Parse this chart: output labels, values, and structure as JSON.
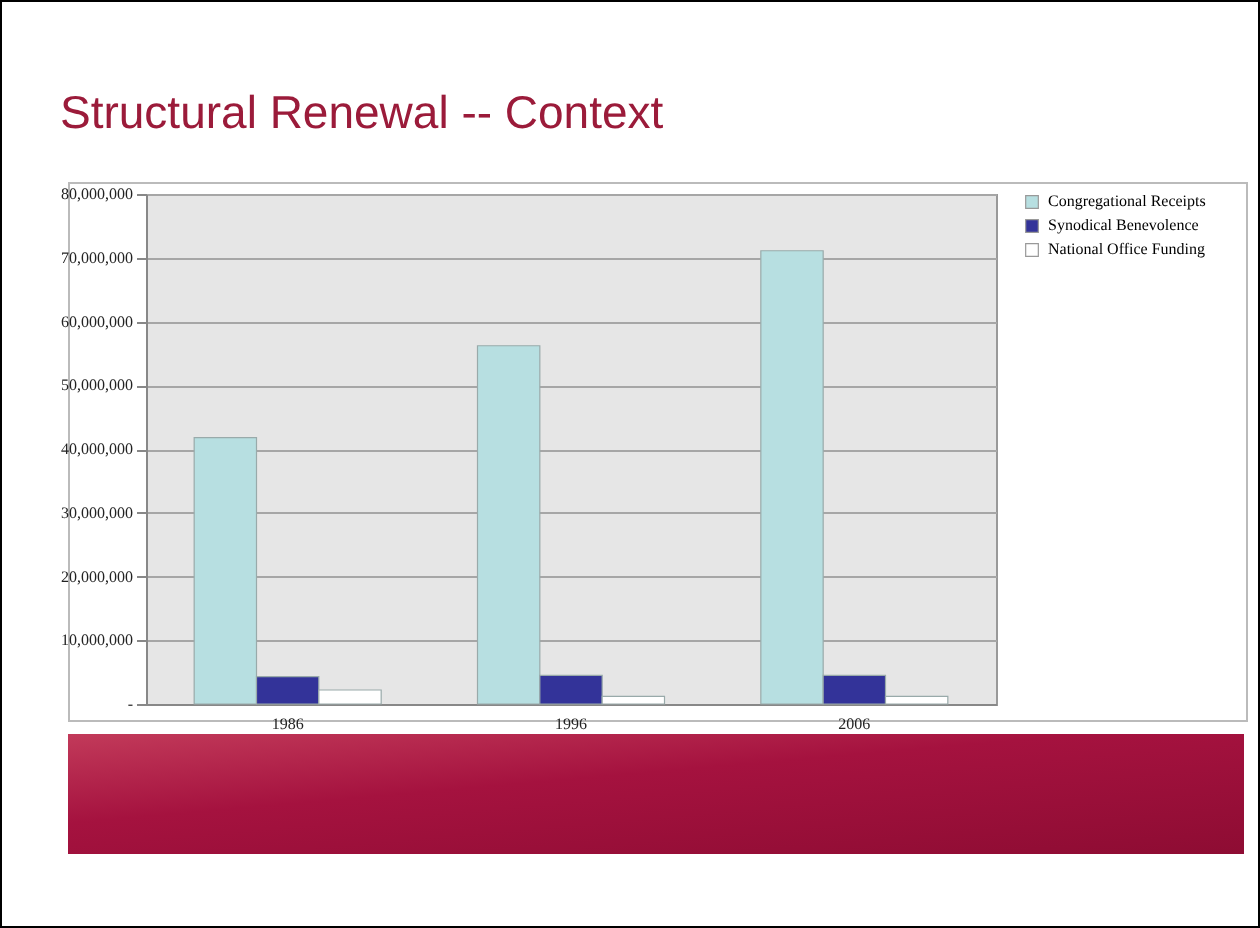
{
  "chart_data": {
    "type": "bar",
    "title": "Structural Renewal -- Context",
    "categories": [
      "1986",
      "1996",
      "2006"
    ],
    "series": [
      {
        "name": "Congregational Receipts",
        "color": "#b7dfe1",
        "values": [
          41800000,
          56200000,
          71100000
        ]
      },
      {
        "name": "Synodical Benevolence",
        "color": "#333399",
        "values": [
          4300000,
          4500000,
          4500000
        ]
      },
      {
        "name": "National Office Funding",
        "color": "#ffffff",
        "values": [
          2200000,
          1200000,
          1200000
        ]
      }
    ],
    "ylim": [
      0,
      80000000
    ],
    "yticks": [
      {
        "value": 0,
        "label": "-"
      },
      {
        "value": 10000000,
        "label": "10,000,000"
      },
      {
        "value": 20000000,
        "label": "20,000,000"
      },
      {
        "value": 30000000,
        "label": "30,000,000"
      },
      {
        "value": 40000000,
        "label": "40,000,000"
      },
      {
        "value": 50000000,
        "label": "50,000,000"
      },
      {
        "value": 60000000,
        "label": "60,000,000"
      },
      {
        "value": 70000000,
        "label": "70,000,000"
      },
      {
        "value": 80000000,
        "label": "80,000,000"
      }
    ],
    "grid": "y",
    "legend": "right"
  }
}
